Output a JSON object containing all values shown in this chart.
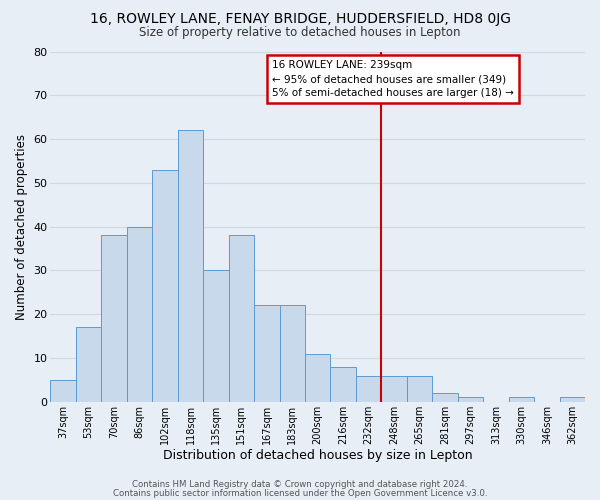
{
  "title": "16, ROWLEY LANE, FENAY BRIDGE, HUDDERSFIELD, HD8 0JG",
  "subtitle": "Size of property relative to detached houses in Lepton",
  "xlabel": "Distribution of detached houses by size in Lepton",
  "ylabel": "Number of detached properties",
  "bar_labels": [
    "37sqm",
    "53sqm",
    "70sqm",
    "86sqm",
    "102sqm",
    "118sqm",
    "135sqm",
    "151sqm",
    "167sqm",
    "183sqm",
    "200sqm",
    "216sqm",
    "232sqm",
    "248sqm",
    "265sqm",
    "281sqm",
    "297sqm",
    "313sqm",
    "330sqm",
    "346sqm",
    "362sqm"
  ],
  "bar_heights": [
    5,
    17,
    38,
    40,
    53,
    62,
    30,
    38,
    22,
    22,
    11,
    8,
    6,
    6,
    6,
    2,
    1,
    0,
    1,
    0,
    1
  ],
  "bar_color": "#c8d9ec",
  "bar_edge_color": "#5b9bd5",
  "vline_x_idx": 12.5,
  "vline_color": "#cc0000",
  "annotation_title": "16 ROWLEY LANE: 239sqm",
  "annotation_line1": "← 95% of detached houses are smaller (349)",
  "annotation_line2": "5% of semi-detached houses are larger (18) →",
  "annotation_box_color": "#ffffff",
  "annotation_box_edge": "#cc0000",
  "footer1": "Contains HM Land Registry data © Crown copyright and database right 2024.",
  "footer2": "Contains public sector information licensed under the Open Government Licence v3.0.",
  "ylim": [
    0,
    80
  ],
  "yticks": [
    0,
    10,
    20,
    30,
    40,
    50,
    60,
    70,
    80
  ],
  "grid_color": "#d0d8e4",
  "bg_color": "#e8eef5",
  "plot_bg_color": "#e8eef5"
}
